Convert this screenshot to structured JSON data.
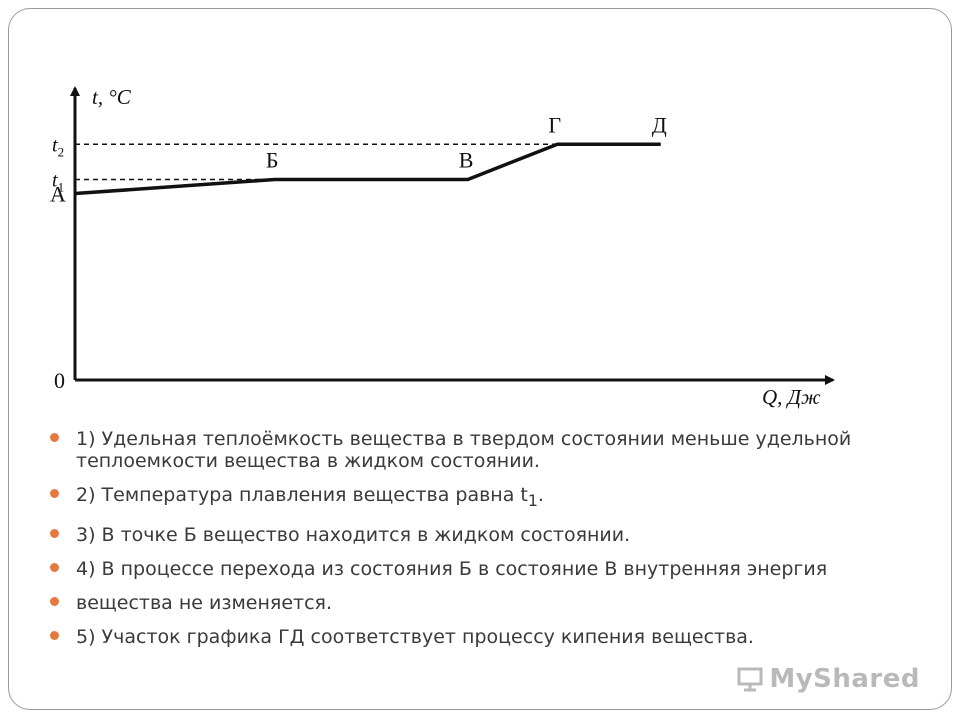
{
  "chart_data": {
    "type": "line",
    "title": "",
    "ylabel": "t, °C",
    "xlabel": "Q, Дж",
    "origin_label": "0",
    "y_tick_labels": [
      {
        "label": "t",
        "sub": "2",
        "value": 2
      },
      {
        "label": "t",
        "sub": "1",
        "value": 1
      }
    ],
    "points": [
      {
        "name": "А",
        "x": 0,
        "y": 0.6
      },
      {
        "name": "Б",
        "x": 2.9,
        "y": 1
      },
      {
        "name": "В",
        "x": 5.7,
        "y": 1
      },
      {
        "name": "Г",
        "x": 7.0,
        "y": 2
      },
      {
        "name": "Д",
        "x": 8.5,
        "y": 2
      }
    ],
    "xlim": [
      0,
      11
    ],
    "ylim": [
      -4.7,
      3.6
    ],
    "grid": false
  },
  "bullets": [
    {
      "text": "1) Удельная теплоёмкость вещества в твердом состоянии меньше удельной теплоемкости вещества в жидком состоянии."
    },
    {
      "text": "2) Температура плавления вещества равна t",
      "sub": "1",
      "tail": "."
    },
    {
      "text": "3) В точке Б вещество находится в жидком состоянии."
    },
    {
      "text": "4) В процессе перехода из состояния Б в состояние В внутренняя энергия"
    },
    {
      "text": "вещества не изменяется."
    },
    {
      "text": "5) Участок графика ГД соответствует процессу кипения вещества."
    }
  ],
  "watermark": "MyShared",
  "colors": {
    "bullet": "#e27a3f",
    "line": "#111111",
    "text": "#3a3a3a"
  }
}
